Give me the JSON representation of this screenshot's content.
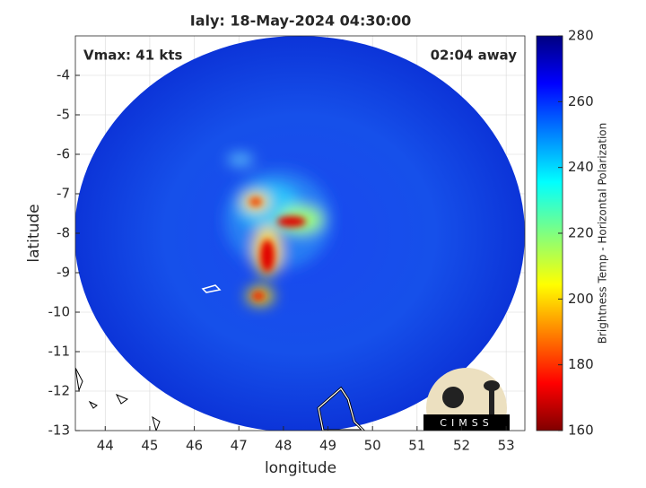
{
  "chart_data": {
    "type": "heatmap",
    "title": "Ialy: 18-May-2024 04:30:00",
    "annotations": {
      "left": "Vmax: 41 kts",
      "right": "02:04 away"
    },
    "xlabel": "longitude",
    "ylabel": "latitude",
    "xlim": [
      43.33,
      53.42
    ],
    "xticks": [
      44,
      45,
      46,
      47,
      48,
      49,
      50,
      51,
      52,
      53
    ],
    "ylim": [
      -13,
      -3
    ],
    "yticks": [
      -13,
      -12,
      -11,
      -10,
      -9,
      -8,
      -7,
      -6,
      -5,
      -4
    ],
    "grid": true,
    "colorbar": {
      "label": "Brightness Temp - Horizontal Polarization",
      "colormap": "jet",
      "lim": [
        160,
        280
      ],
      "ticks": [
        160,
        180,
        200,
        220,
        240,
        260,
        280
      ]
    },
    "logo_text": "CIMSS"
  }
}
